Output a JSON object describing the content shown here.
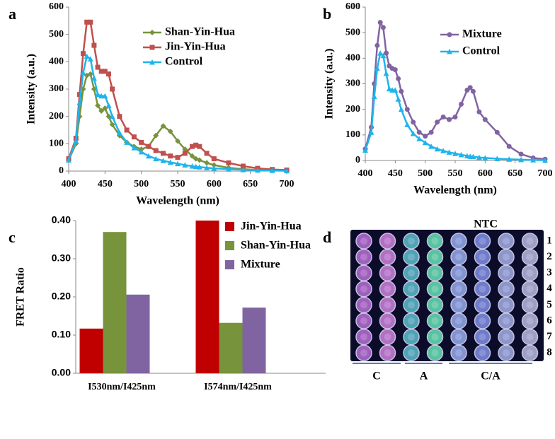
{
  "chart_data": [
    {
      "type": "line",
      "panel": "a",
      "xlabel": "Wavelength (nm)",
      "ylabel": "Intensity (a.u.)",
      "x": [
        400,
        410,
        415,
        420,
        425,
        430,
        435,
        440,
        445,
        450,
        455,
        460,
        470,
        480,
        490,
        500,
        510,
        520,
        530,
        540,
        550,
        560,
        570,
        575,
        580,
        590,
        600,
        620,
        640,
        660,
        680,
        700
      ],
      "xlim": [
        400,
        700
      ],
      "xticks": [
        400,
        450,
        500,
        550,
        600,
        650,
        700
      ],
      "ylim": [
        0,
        600
      ],
      "yticks": [
        0,
        100,
        200,
        300,
        400,
        500,
        600
      ],
      "series": [
        {
          "name": "Shan-Yin-Hua",
          "color": "#77933c",
          "marker": "diamond",
          "values": [
            40,
            100,
            200,
            300,
            350,
            355,
            300,
            240,
            220,
            230,
            200,
            170,
            130,
            105,
            90,
            80,
            90,
            130,
            165,
            145,
            110,
            80,
            55,
            45,
            40,
            30,
            22,
            12,
            7,
            4,
            3,
            2
          ]
        },
        {
          "name": "Jin-Yin-Hua",
          "color": "#c0504d",
          "marker": "square",
          "values": [
            45,
            120,
            280,
            430,
            545,
            545,
            460,
            380,
            365,
            365,
            355,
            300,
            200,
            150,
            125,
            105,
            90,
            75,
            65,
            55,
            50,
            65,
            90,
            95,
            90,
            65,
            45,
            30,
            18,
            10,
            6,
            4
          ]
        },
        {
          "name": "Control",
          "color": "#1fb4ec",
          "marker": "triangle",
          "values": [
            40,
            110,
            250,
            360,
            420,
            410,
            340,
            280,
            275,
            275,
            240,
            200,
            140,
            105,
            85,
            70,
            55,
            45,
            38,
            32,
            27,
            22,
            18,
            16,
            15,
            12,
            10,
            7,
            5,
            3,
            2,
            1
          ]
        }
      ]
    },
    {
      "type": "line",
      "panel": "b",
      "xlabel": "Wavelength (nm)",
      "ylabel": "Intensity (a.u.)",
      "x": [
        400,
        410,
        415,
        420,
        425,
        430,
        435,
        440,
        445,
        450,
        455,
        460,
        470,
        480,
        490,
        500,
        510,
        520,
        530,
        540,
        550,
        560,
        570,
        575,
        580,
        590,
        600,
        620,
        640,
        660,
        680,
        700
      ],
      "xlim": [
        400,
        700
      ],
      "xticks": [
        400,
        450,
        500,
        550,
        600,
        650,
        700
      ],
      "ylim": [
        0,
        600
      ],
      "yticks": [
        0,
        100,
        200,
        300,
        400,
        500,
        600
      ],
      "series": [
        {
          "name": "Mixture",
          "color": "#8064a2",
          "marker": "circle",
          "values": [
            45,
            130,
            300,
            450,
            540,
            520,
            420,
            370,
            360,
            355,
            320,
            270,
            200,
            150,
            110,
            95,
            110,
            150,
            170,
            160,
            170,
            220,
            275,
            285,
            270,
            190,
            160,
            110,
            55,
            25,
            10,
            5
          ]
        },
        {
          "name": "Control",
          "color": "#1fb4ec",
          "marker": "triangle",
          "values": [
            40,
            110,
            250,
            360,
            420,
            410,
            340,
            280,
            275,
            275,
            240,
            200,
            140,
            105,
            85,
            70,
            55,
            45,
            38,
            32,
            27,
            22,
            18,
            16,
            15,
            12,
            10,
            7,
            5,
            3,
            2,
            1
          ]
        }
      ]
    },
    {
      "type": "bar",
      "panel": "c",
      "ylabel": "FRET Ratio",
      "categories": [
        "I530nm/I425nm",
        "I574nm/I425nm"
      ],
      "ylim": [
        0,
        0.4
      ],
      "yticks": [
        {
          "value": 0,
          "label": "0.00"
        },
        {
          "value": 0.1,
          "label": "0.10"
        },
        {
          "value": 0.2,
          "label": "0.20"
        },
        {
          "value": 0.3,
          "label": "0.30"
        },
        {
          "value": 0.4,
          "label": "0.40"
        }
      ],
      "series": [
        {
          "name": "Jin-Yin-Hua",
          "color": "#c00000",
          "values": [
            0.117,
            0.4
          ]
        },
        {
          "name": "Shan-Yin-Hua",
          "color": "#77933c",
          "values": [
            0.37,
            0.132
          ]
        },
        {
          "name": "Mixture",
          "color": "#8064a2",
          "values": [
            0.206,
            0.172
          ]
        }
      ]
    }
  ],
  "plate": {
    "panel": "d",
    "title": "NTC",
    "rows": [
      "1",
      "2",
      "3",
      "4",
      "5",
      "6",
      "7",
      "8"
    ],
    "groups": [
      "C",
      "A",
      "C/A"
    ]
  }
}
